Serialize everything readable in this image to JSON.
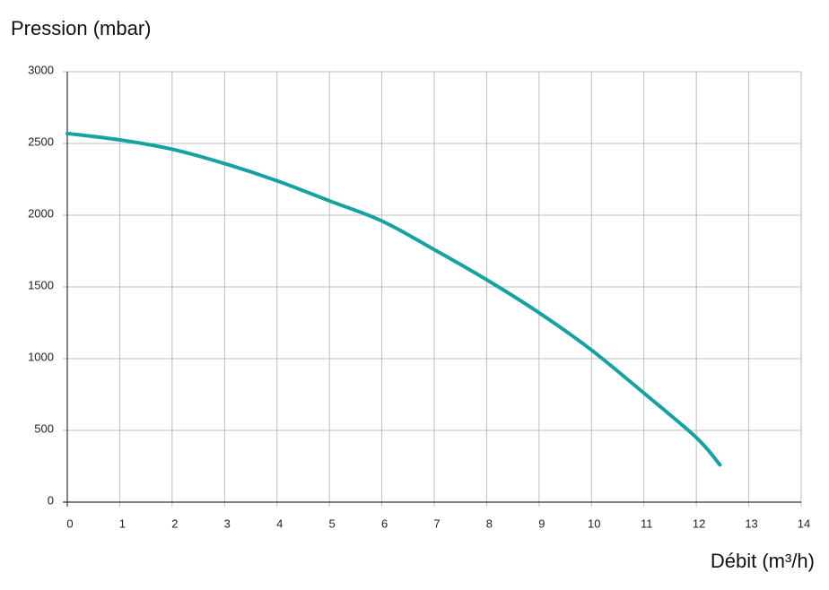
{
  "chart_data": {
    "type": "line",
    "title": "Pression (mbar)",
    "x_label": "Débit (m³/h)",
    "x": [
      0,
      1,
      2,
      3,
      4,
      5,
      6,
      7,
      8,
      9,
      10,
      11,
      12,
      12.45
    ],
    "series": [
      {
        "color": "#17a2a2",
        "values": [
          2570,
          2525,
          2460,
          2360,
          2240,
          2100,
          1960,
          1760,
          1550,
          1320,
          1060,
          760,
          450,
          260
        ]
      }
    ],
    "xlim": [
      0,
      14
    ],
    "xticks": [
      0,
      1,
      2,
      3,
      4,
      5,
      6,
      7,
      8,
      9,
      10,
      11,
      12,
      13,
      14
    ],
    "ylim": [
      0,
      3000
    ],
    "yticks": [
      0,
      500,
      1000,
      1500,
      2000,
      2500,
      3000
    ],
    "grid": true
  }
}
